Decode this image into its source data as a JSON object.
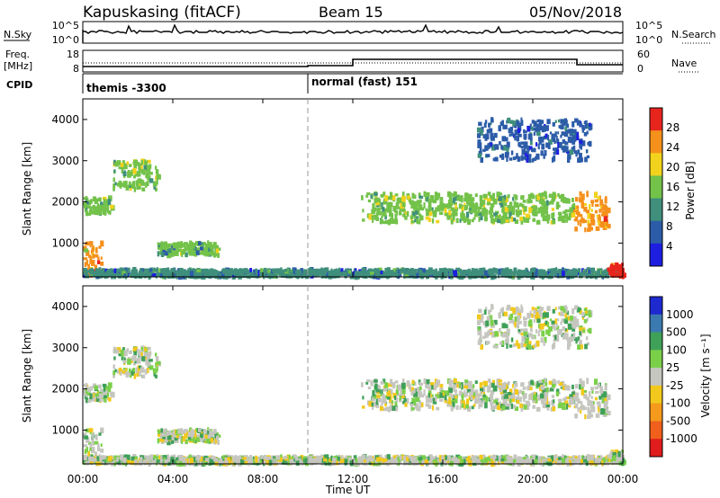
{
  "header": {
    "station": "Kapuskasing (fitACF)",
    "beam": "Beam 15",
    "date": "05/Nov/2018"
  },
  "summary": {
    "nsky_label": "N.Sky",
    "nsearch_label": "N.Search",
    "freq_label_line1": "Freq.",
    "freq_label_line2": "[MHz]",
    "nave_label": "Nave",
    "cpid_label": "CPID",
    "noise_ticks": [
      "10^5",
      "10^0"
    ],
    "noise_ticks_right": [
      "10^5",
      "10^0"
    ],
    "freq_ticks": [
      "18",
      "8"
    ],
    "nave_ticks": [
      "60",
      "0"
    ],
    "cpid_segments": [
      {
        "label": "themis -3300",
        "start_hour": 0,
        "end_hour": 10
      },
      {
        "label": "normal (fast) 151",
        "start_hour": 10,
        "end_hour": 24
      }
    ]
  },
  "axes": {
    "time_ticks": [
      "00:00",
      "04:00",
      "08:00",
      "12:00",
      "16:00",
      "20:00",
      "00:00"
    ],
    "xlabel": "Time UT",
    "range_ticks": [
      "1000",
      "2000",
      "3000",
      "4000"
    ],
    "ylabel": "Slant Range [km]"
  },
  "power_scale": {
    "label": "Power [dB]",
    "ticks": [
      "4",
      "8",
      "12",
      "16",
      "20",
      "24",
      "28"
    ]
  },
  "velocity_scale": {
    "label": "Velocity [m s⁻¹]",
    "ticks": [
      "1000",
      "500",
      "100",
      "25",
      "-25",
      "-100",
      "-500",
      "-1000"
    ]
  },
  "chart_data": {
    "type": "heatmap",
    "title": "Kapuskasing (fitACF)",
    "xlabel": "Time UT",
    "ylabel": "Slant Range [km]",
    "xlim_hours": [
      0,
      24
    ],
    "ylim_km": [
      180,
      4500
    ],
    "panels": [
      "Power [dB]",
      "Velocity [m s-1]"
    ],
    "power_colorbar": [
      {
        "value": 4,
        "color": "#1e1ee0"
      },
      {
        "value": 8,
        "color": "#2c5ca8"
      },
      {
        "value": 12,
        "color": "#3f8f7c"
      },
      {
        "value": 16,
        "color": "#73c24a"
      },
      {
        "value": 20,
        "color": "#f2d21c"
      },
      {
        "value": 24,
        "color": "#f5901c"
      },
      {
        "value": 28,
        "color": "#e8251c"
      }
    ],
    "velocity_colorbar": [
      {
        "value": 1000,
        "color": "#1e2ad0"
      },
      {
        "value": 500,
        "color": "#3a7ab0"
      },
      {
        "value": 100,
        "color": "#3fa058"
      },
      {
        "value": 25,
        "color": "#7bd04a"
      },
      {
        "value": 0,
        "color": "#c6c6c0"
      },
      {
        "value": -25,
        "color": "#f2c81c"
      },
      {
        "value": -100,
        "color": "#f59a1c"
      },
      {
        "value": -500,
        "color": "#f0601c"
      },
      {
        "value": -1000,
        "color": "#e01c1c"
      }
    ],
    "echo_regions": [
      {
        "start_hour": 0.0,
        "end_hour": 1.3,
        "range_low_km": 1700,
        "range_high_km": 2100,
        "power_db": 14
      },
      {
        "start_hour": 1.3,
        "end_hour": 3.3,
        "range_low_km": 2300,
        "range_high_km": 3000,
        "power_db": 16
      },
      {
        "start_hour": 0.0,
        "end_hour": 0.8,
        "range_low_km": 200,
        "range_high_km": 1000,
        "power_db": 22
      },
      {
        "start_hour": 3.3,
        "end_hour": 6.0,
        "range_low_km": 700,
        "range_high_km": 1000,
        "power_db": 14
      },
      {
        "start_hour": 0.0,
        "end_hour": 24.0,
        "range_low_km": 180,
        "range_high_km": 350,
        "power_db": 10
      },
      {
        "start_hour": 12.3,
        "end_hour": 21.8,
        "range_low_km": 1500,
        "range_high_km": 2200,
        "power_db": 16
      },
      {
        "start_hour": 21.8,
        "end_hour": 23.3,
        "range_low_km": 1300,
        "range_high_km": 2200,
        "power_db": 24
      },
      {
        "start_hour": 17.5,
        "end_hour": 22.5,
        "range_low_km": 3000,
        "range_high_km": 4000,
        "power_db": 8
      },
      {
        "start_hour": 23.3,
        "end_hour": 24.0,
        "range_low_km": 180,
        "range_high_km": 500,
        "power_db": 30
      }
    ]
  }
}
